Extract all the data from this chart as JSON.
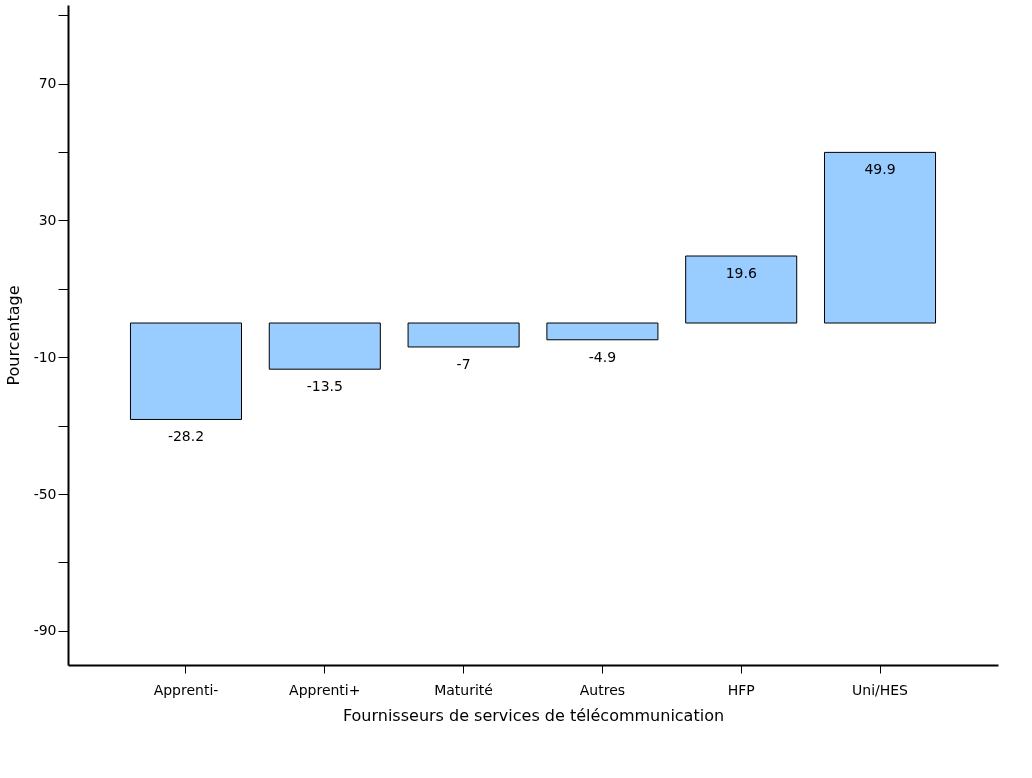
{
  "chart_data": {
    "type": "bar",
    "xlabel": "Fournisseurs de services de télécommunication",
    "ylabel": "Pourcentage",
    "categories": [
      "Apprenti-",
      "Apprenti+",
      "Maturité",
      "Autres",
      "HFP",
      "Uni/HES"
    ],
    "values": [
      -28.2,
      -13.5,
      -7,
      -4.9,
      19.6,
      49.9
    ],
    "color": "#99ccff",
    "data_labels": true,
    "ylim": [
      -100,
      93
    ],
    "yticks": [
      -90,
      {
        "value": -70,
        "label": null
      },
      -50,
      {
        "value": -30,
        "label": null
      },
      -10,
      {
        "value": 10,
        "label": null
      },
      30,
      {
        "value": 50,
        "label": null
      },
      70,
      {
        "value": 90,
        "label": null
      }
    ],
    "grid": false
  }
}
